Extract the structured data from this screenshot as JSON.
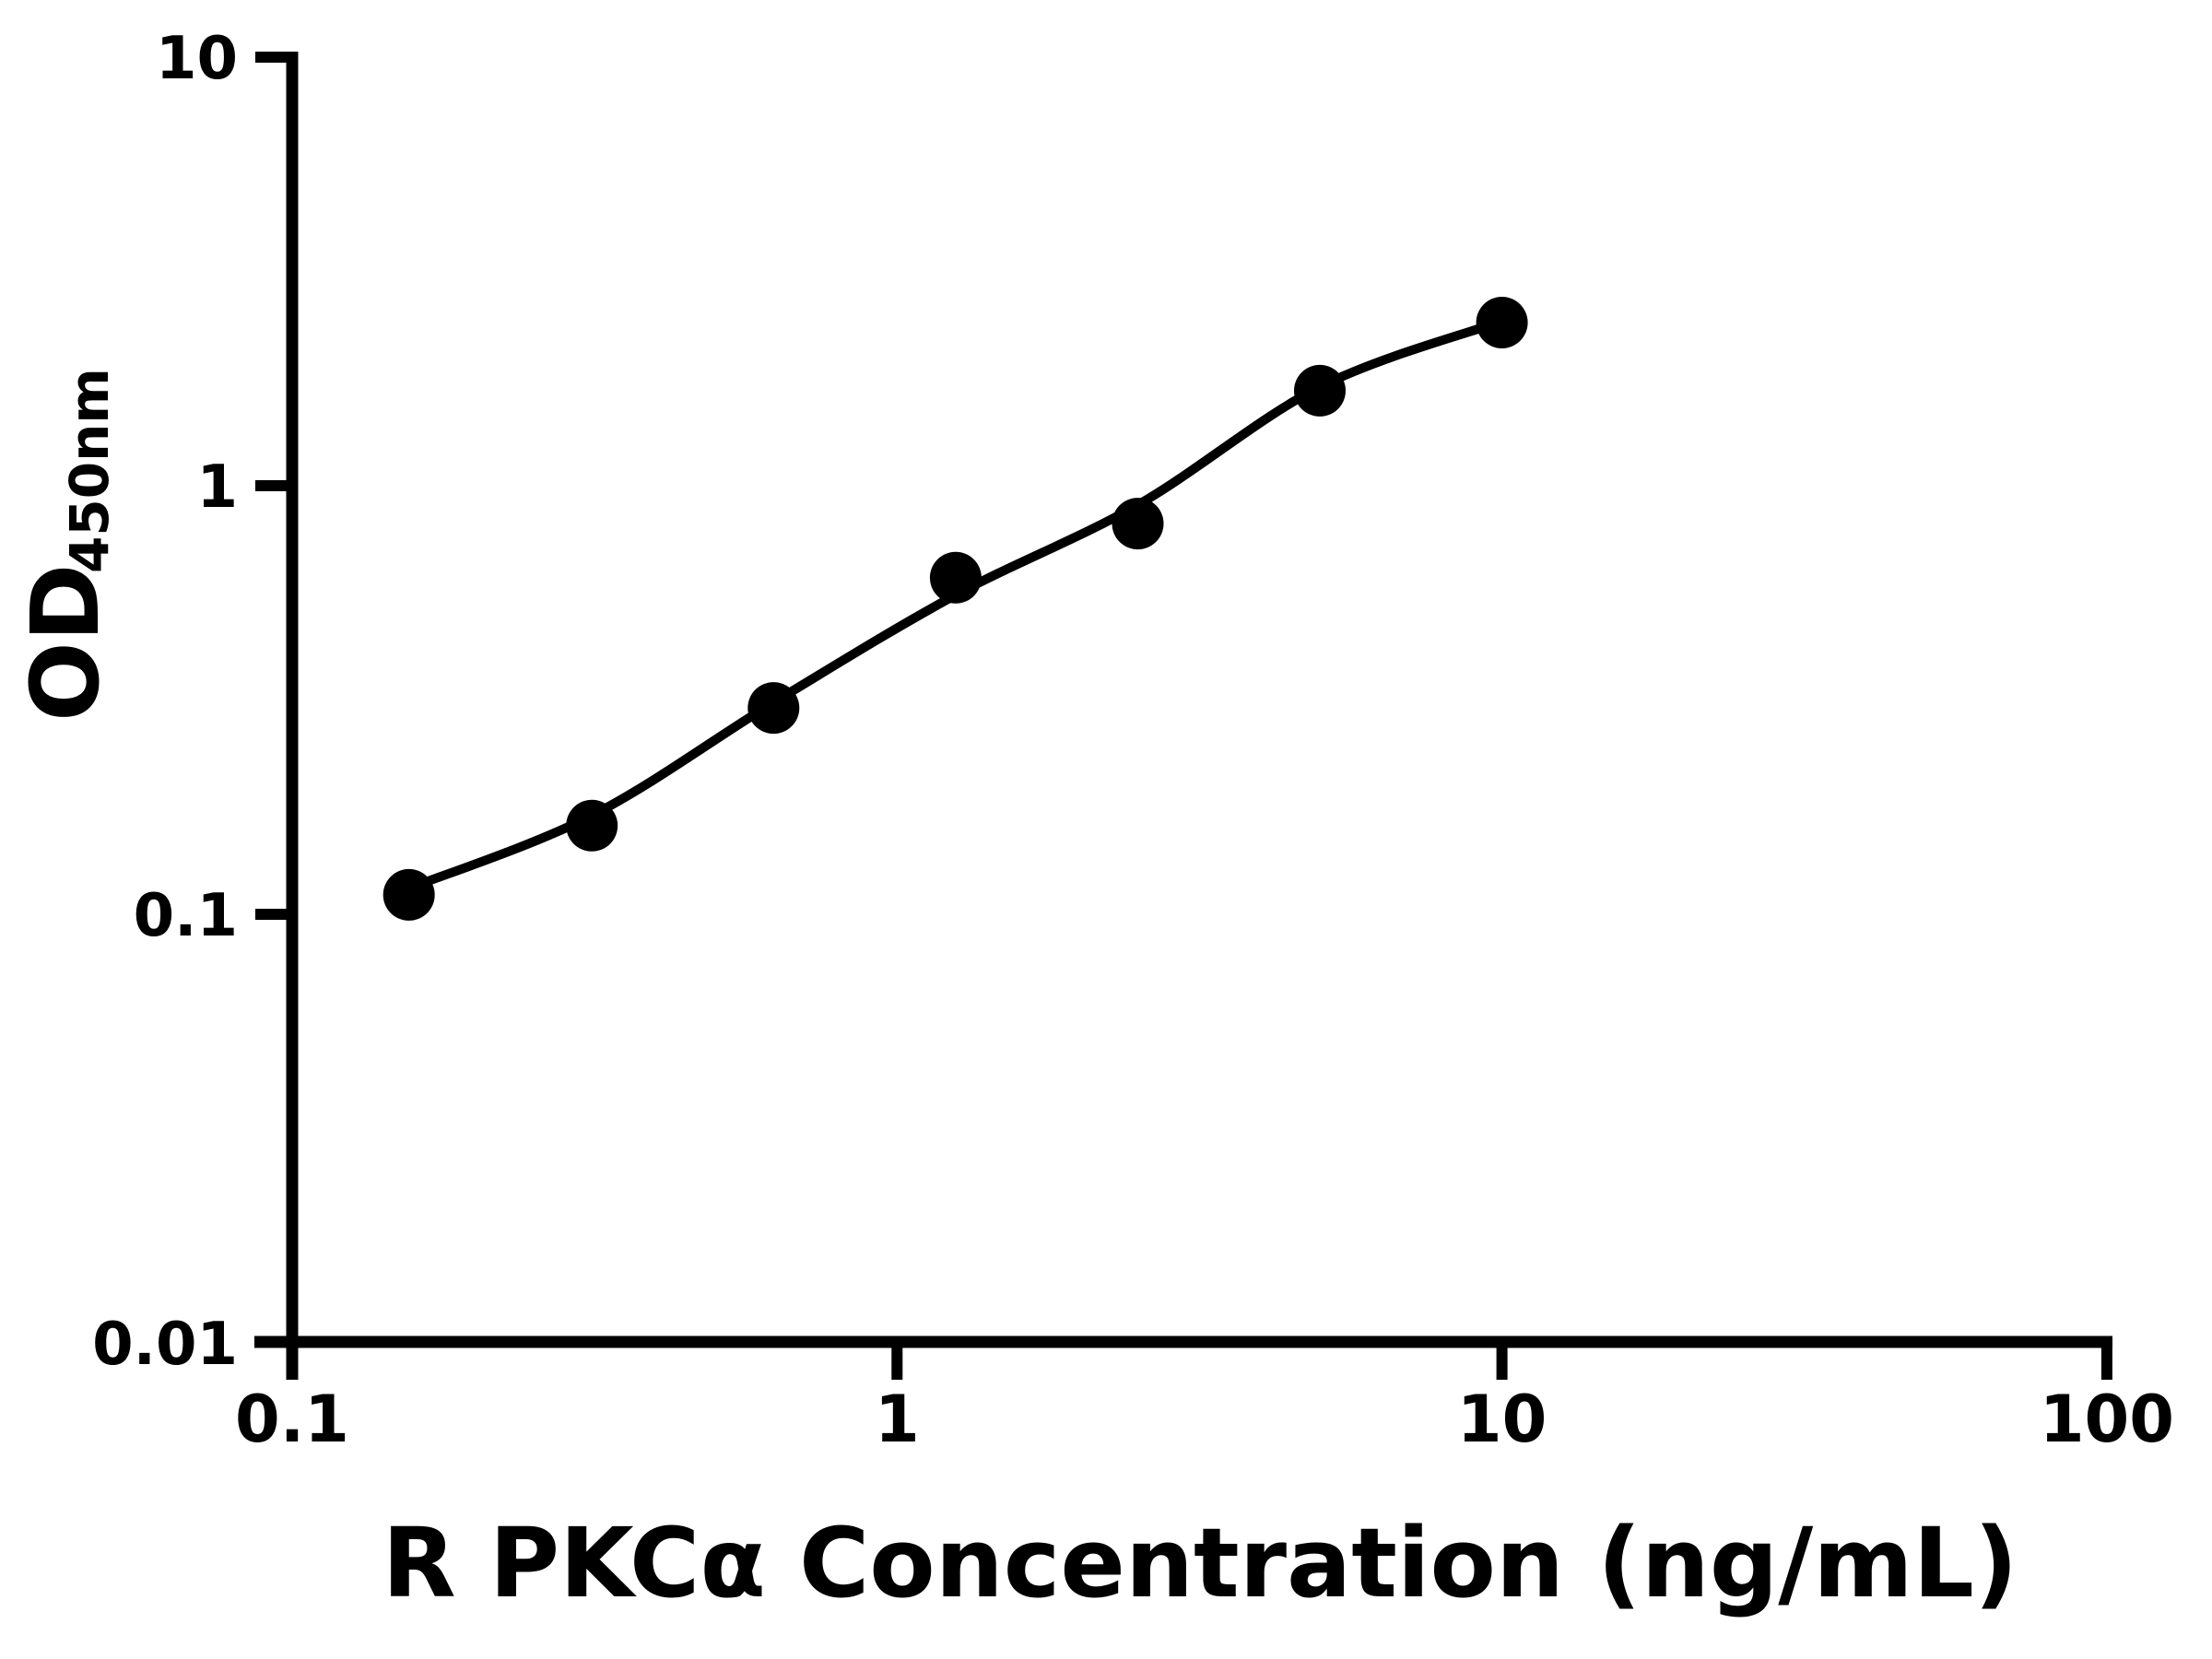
{
  "page": {
    "background": "#ffffff"
  },
  "chart_data": {
    "type": "scatter",
    "title": "",
    "xlabel": "R PKCα Concentration (ng/mL)",
    "ylabel": {
      "main": "OD",
      "subscript": "450nm"
    },
    "x_scale": "log",
    "y_scale": "log",
    "xlim": [
      0.1,
      100
    ],
    "ylim": [
      0.01,
      10
    ],
    "grid": false,
    "legend": "none",
    "ink_color": "#000000",
    "x_ticks": [
      {
        "value": 0.1,
        "label": "0.1"
      },
      {
        "value": 1,
        "label": "1"
      },
      {
        "value": 10,
        "label": "10"
      },
      {
        "value": 100,
        "label": "100"
      }
    ],
    "y_ticks": [
      {
        "value": 10,
        "label": "10"
      },
      {
        "value": 1,
        "label": "1"
      },
      {
        "value": 0.1,
        "label": "0.1"
      },
      {
        "value": 0.01,
        "label": "0.01"
      }
    ],
    "series": [
      {
        "marker": "filled-circle",
        "points": [
          {
            "x": 0.156,
            "y": 0.111
          },
          {
            "x": 0.313,
            "y": 0.161
          },
          {
            "x": 0.625,
            "y": 0.303
          },
          {
            "x": 1.25,
            "y": 0.61
          },
          {
            "x": 2.5,
            "y": 0.816
          },
          {
            "x": 5,
            "y": 1.666
          },
          {
            "x": 10,
            "y": 2.402
          }
        ]
      }
    ],
    "fit_curve": {
      "points": [
        {
          "x": 0.156,
          "y": 0.115
        },
        {
          "x": 0.313,
          "y": 0.17
        },
        {
          "x": 0.625,
          "y": 0.312
        },
        {
          "x": 1.25,
          "y": 0.556
        },
        {
          "x": 2.5,
          "y": 0.902
        },
        {
          "x": 5,
          "y": 1.7
        },
        {
          "x": 10,
          "y": 2.42
        }
      ]
    }
  }
}
